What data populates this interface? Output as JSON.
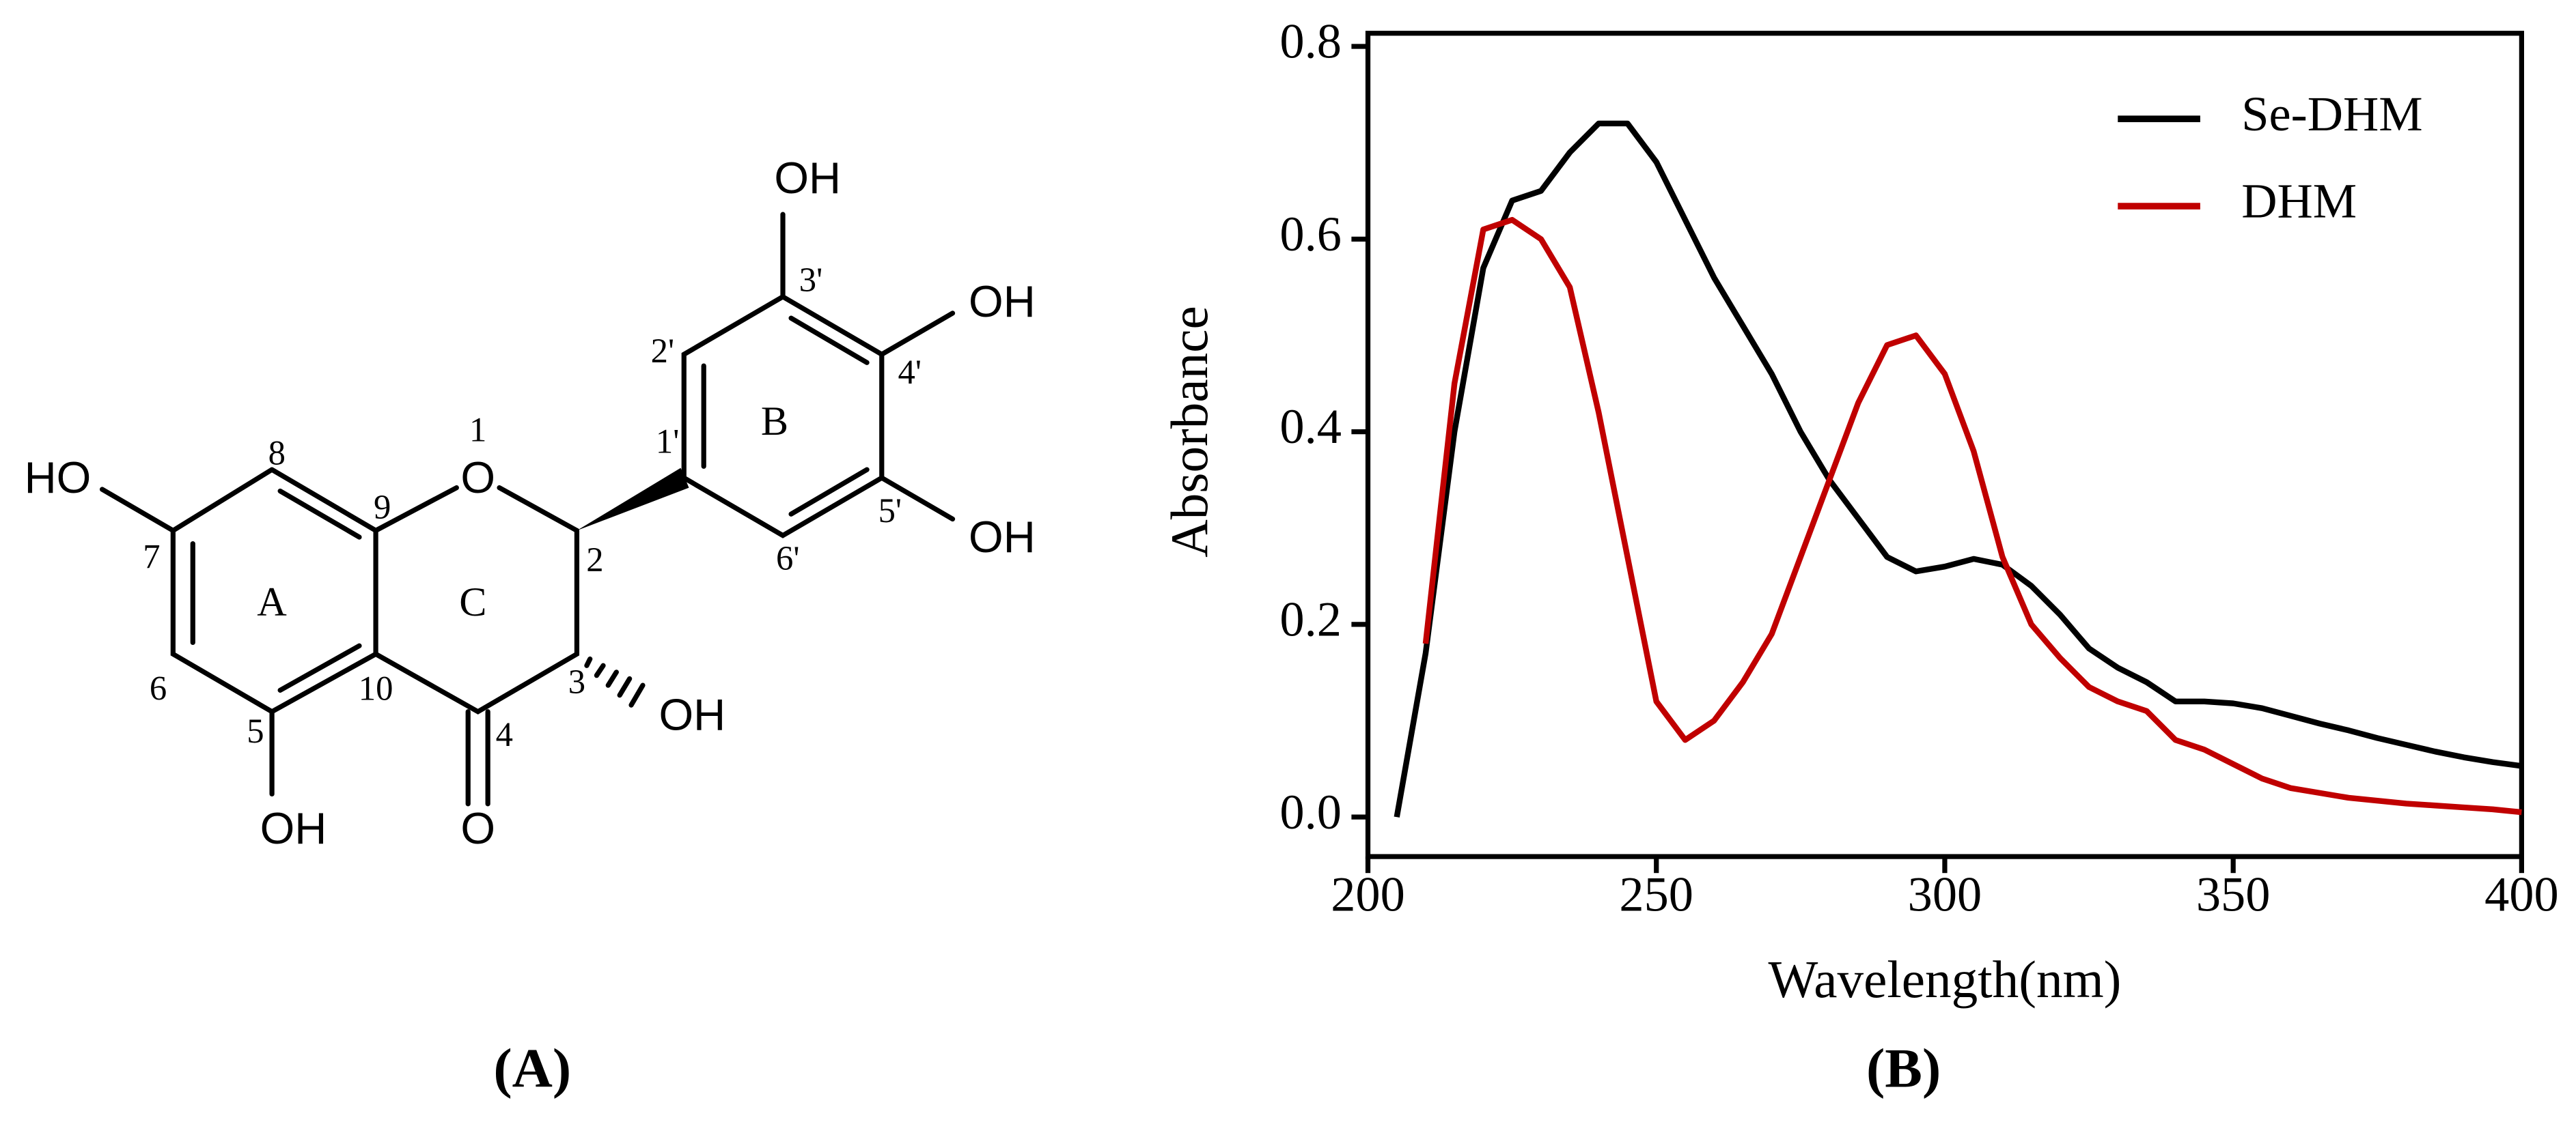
{
  "structure": {
    "atoms": [
      "O",
      "O",
      "HO",
      "OH",
      "OH",
      "OH",
      "OH",
      "OH"
    ],
    "locants": [
      "1",
      "2",
      "3",
      "4",
      "5",
      "6",
      "7",
      "8",
      "9",
      "10",
      "1'",
      "2'",
      "3'",
      "4'",
      "5'",
      "6'"
    ],
    "rings": [
      "A",
      "B",
      "C"
    ]
  },
  "panels": [
    "(A)",
    "(B)"
  ],
  "chart_data": {
    "type": "line",
    "x_label": "Wavelength(nm)",
    "y_label": "Absorbance",
    "x": [
      205,
      210,
      215,
      220,
      225,
      230,
      235,
      240,
      245,
      250,
      255,
      260,
      265,
      270,
      275,
      280,
      285,
      290,
      295,
      300,
      305,
      310,
      315,
      320,
      325,
      330,
      335,
      340,
      345,
      350,
      355,
      360,
      365,
      370,
      375,
      380,
      385,
      390,
      395,
      400
    ],
    "series": [
      {
        "name": "Se-DHM",
        "color": "#000000",
        "values": [
          0,
          0.17,
          0.4,
          0.57,
          0.64,
          0.65,
          0.69,
          0.72,
          0.72,
          0.68,
          0.62,
          0.56,
          0.51,
          0.46,
          0.4,
          0.35,
          0.31,
          0.27,
          0.255,
          0.26,
          0.268,
          0.262,
          0.24,
          0.21,
          0.175,
          0.155,
          0.14,
          0.12,
          0.12,
          0.118,
          0.113,
          0.105,
          0.097,
          0.09,
          0.082,
          0.075,
          0.068,
          0.062,
          0.057,
          0.053
        ]
      },
      {
        "name": "DHM",
        "color": "#c00000",
        "values": [
          null,
          0.18,
          0.45,
          0.61,
          0.62,
          0.6,
          0.55,
          0.42,
          0.27,
          0.12,
          0.08,
          0.1,
          0.14,
          0.19,
          0.27,
          0.35,
          0.43,
          0.49,
          0.5,
          0.46,
          0.38,
          0.27,
          0.2,
          0.165,
          0.135,
          0.12,
          0.11,
          0.08,
          0.07,
          0.055,
          0.04,
          0.03,
          0.025,
          0.02,
          0.017,
          0.014,
          0.012,
          0.01,
          0.008,
          0.005
        ]
      }
    ],
    "xlim": [
      200,
      400
    ],
    "xticks": [
      200,
      250,
      300,
      350,
      400
    ],
    "ylim": [
      0,
      0.8
    ],
    "yticks": [
      {
        "value": 0,
        "label": "0.0"
      },
      0.2,
      0.4,
      0.6,
      0.8
    ],
    "legend": "upper right"
  }
}
